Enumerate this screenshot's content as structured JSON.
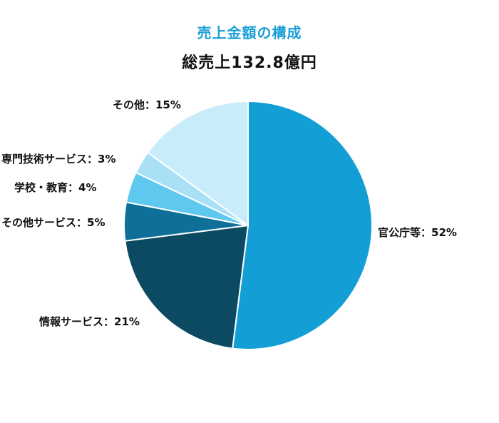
{
  "chart_data": {
    "type": "pie",
    "title": "売上金額の構成",
    "subtitle": "総売上132.8億円",
    "slices": [
      {
        "label": "官公庁等",
        "value": 52,
        "display": "官公庁等：52%",
        "color": "#139fd6"
      },
      {
        "label": "情報サービス",
        "value": 21,
        "display": "情報サービス：21%",
        "color": "#0c4a63"
      },
      {
        "label": "その他サービス",
        "value": 5,
        "display": "その他サービス：5%",
        "color": "#0e6f98"
      },
      {
        "label": "学校・教育",
        "value": 4,
        "display": "学校・教育：4%",
        "color": "#5fc8ef"
      },
      {
        "label": "専門技術サービス",
        "value": 3,
        "display": "専門技術サービス：3%",
        "color": "#a9e0f6"
      },
      {
        "label": "その他",
        "value": 15,
        "display": "その他：15%",
        "color": "#c9ecfa"
      }
    ],
    "legend": "none",
    "grid": false
  }
}
